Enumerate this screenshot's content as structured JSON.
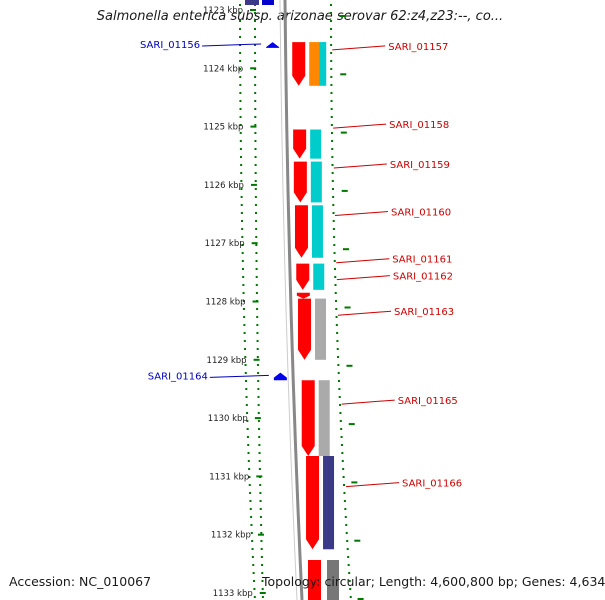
{
  "title": "Salmonella enterica subsp. arizonae serovar 62:z4,z23:--, co...",
  "footer": {
    "accession": "Accession: NC_010067",
    "topology": "Topology: circular; Length: 4,600,800 bp; Genes: 4,634"
  },
  "colors": {
    "forward_label": "#cc0000",
    "reverse_label": "#0000bb",
    "gene": "#ff0000",
    "cyan": "#00cccc",
    "orange": "#ff8800",
    "gray": "#aaaaaa",
    "navy": "#3a3a88",
    "tick": "#007700",
    "backbone": "#888888",
    "reverse_marker": "#0000ee"
  },
  "scale": {
    "unit": "kbp",
    "ticks": [
      {
        "kbp": 1123,
        "label": "1123 kbp"
      },
      {
        "kbp": 1124,
        "label": "1124 kbp"
      },
      {
        "kbp": 1125,
        "label": "1125 kbp"
      },
      {
        "kbp": 1126,
        "label": "1126 kbp"
      },
      {
        "kbp": 1127,
        "label": "1127 kbp"
      },
      {
        "kbp": 1128,
        "label": "1128 kbp"
      },
      {
        "kbp": 1129,
        "label": "1129 kbp"
      },
      {
        "kbp": 1130,
        "label": "1130 kbp"
      },
      {
        "kbp": 1131,
        "label": "1131 kbp"
      },
      {
        "kbp": 1132,
        "label": "1132 kbp"
      },
      {
        "kbp": 1133,
        "label": "1133 kbp"
      }
    ]
  },
  "genes": [
    {
      "id": "SARI_01156",
      "strand": "reverse",
      "start_kbp": 1123.55,
      "end_kbp": 1123.65,
      "category": ""
    },
    {
      "id": "SARI_01157",
      "strand": "forward",
      "start_kbp": 1123.55,
      "end_kbp": 1124.3,
      "category": "orange"
    },
    {
      "id": "SARI_01158",
      "strand": "forward",
      "start_kbp": 1125.05,
      "end_kbp": 1125.55,
      "category": "cyan"
    },
    {
      "id": "SARI_01159",
      "strand": "forward",
      "start_kbp": 1125.6,
      "end_kbp": 1126.3,
      "category": "cyan"
    },
    {
      "id": "SARI_01160",
      "strand": "forward",
      "start_kbp": 1126.35,
      "end_kbp": 1127.25,
      "category": "cyan"
    },
    {
      "id": "SARI_01161",
      "strand": "forward",
      "start_kbp": 1127.35,
      "end_kbp": 1127.8,
      "category": "cyan"
    },
    {
      "id": "SARI_01162",
      "strand": "forward",
      "start_kbp": 1127.85,
      "end_kbp": 1127.95,
      "category": ""
    },
    {
      "id": "SARI_01163",
      "strand": "forward",
      "start_kbp": 1127.95,
      "end_kbp": 1129.0,
      "category": "gray"
    },
    {
      "id": "SARI_01164",
      "strand": "reverse",
      "start_kbp": 1129.22,
      "end_kbp": 1129.35,
      "category": ""
    },
    {
      "id": "SARI_01165",
      "strand": "forward",
      "start_kbp": 1129.35,
      "end_kbp": 1130.65,
      "category": "gray"
    },
    {
      "id": "SARI_01166",
      "strand": "forward",
      "start_kbp": 1130.65,
      "end_kbp": 1132.25,
      "category": "navy"
    }
  ]
}
